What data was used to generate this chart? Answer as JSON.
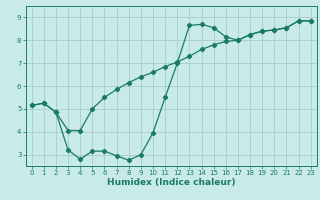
{
  "xlabel": "Humidex (Indice chaleur)",
  "bg_color": "#c8eae8",
  "grid_color": "#a8cccc",
  "line_color": "#1a7a6a",
  "xlim": [
    -0.5,
    23.5
  ],
  "ylim": [
    2.5,
    9.5
  ],
  "xticks": [
    0,
    1,
    2,
    3,
    4,
    5,
    6,
    7,
    8,
    9,
    10,
    11,
    12,
    13,
    14,
    15,
    16,
    17,
    18,
    19,
    20,
    21,
    22,
    23
  ],
  "yticks": [
    3,
    4,
    5,
    6,
    7,
    8,
    9
  ],
  "line1_x": [
    0,
    1,
    2,
    3,
    4,
    5,
    6,
    7,
    8,
    9,
    10,
    11,
    12,
    13,
    14,
    15,
    16,
    17,
    18,
    19,
    20,
    21,
    22,
    23
  ],
  "line1_y": [
    5.15,
    5.25,
    4.85,
    3.2,
    2.8,
    3.15,
    3.15,
    2.95,
    2.75,
    3.0,
    3.95,
    5.5,
    7.0,
    8.65,
    8.7,
    8.55,
    8.15,
    8.0,
    8.25,
    8.4,
    8.45,
    8.55,
    8.85,
    8.85
  ],
  "line2_x": [
    0,
    1,
    2,
    3,
    4,
    5,
    6,
    7,
    8,
    9,
    10,
    11,
    12,
    13,
    14,
    15,
    16,
    17,
    18,
    19,
    20,
    21,
    22,
    23
  ],
  "line2_y": [
    5.15,
    5.25,
    4.85,
    4.05,
    4.05,
    5.0,
    5.5,
    5.85,
    6.15,
    6.4,
    6.6,
    6.85,
    7.05,
    7.3,
    7.6,
    7.8,
    7.95,
    8.0,
    8.25,
    8.4,
    8.45,
    8.55,
    8.85,
    8.85
  ]
}
